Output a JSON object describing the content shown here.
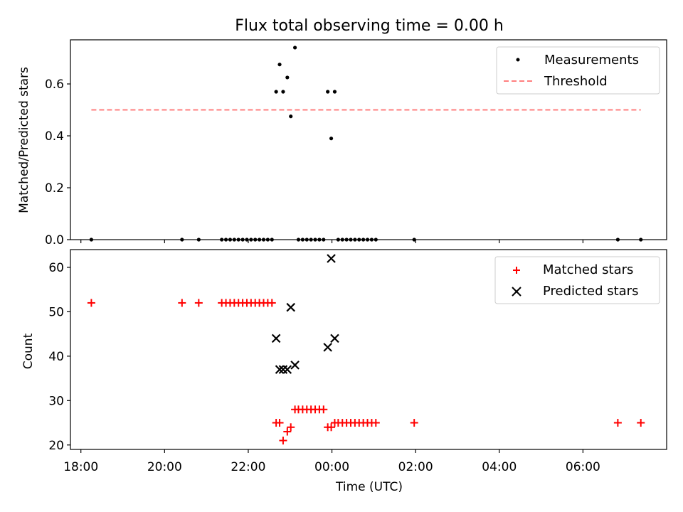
{
  "title": "Flux total observing time = 0.00 h",
  "chart_data": [
    {
      "type": "scatter",
      "ylabel": "Matched/Predicted stars",
      "ylim": [
        0,
        0.77
      ],
      "yticks": [
        0.0,
        0.2,
        0.4,
        0.6
      ],
      "ytick_labels": [
        "0.0",
        "0.2",
        "0.4",
        "0.6"
      ],
      "legend": {
        "placement": "top-right",
        "entries": [
          "Measurements",
          "Threshold"
        ]
      },
      "colors": {
        "measurements": "#000000",
        "threshold": "#ff7f7f"
      },
      "series": [
        {
          "name": "Measurements",
          "points": [
            [
              "18:15",
              0.0
            ],
            [
              "20:25",
              0.0
            ],
            [
              "20:49",
              0.0
            ],
            [
              "21:22",
              0.0
            ],
            [
              "21:28",
              0.0
            ],
            [
              "21:34",
              0.0
            ],
            [
              "21:40",
              0.0
            ],
            [
              "21:46",
              0.0
            ],
            [
              "21:52",
              0.0
            ],
            [
              "21:58",
              0.0
            ],
            [
              "22:04",
              0.0
            ],
            [
              "22:10",
              0.0
            ],
            [
              "22:16",
              0.0
            ],
            [
              "22:22",
              0.0
            ],
            [
              "22:28",
              0.0
            ],
            [
              "22:34",
              0.0
            ],
            [
              "22:40",
              0.57
            ],
            [
              "22:45",
              0.675
            ],
            [
              "22:50",
              0.57
            ],
            [
              "22:56",
              0.625
            ],
            [
              "23:01",
              0.475
            ],
            [
              "23:07",
              0.74
            ],
            [
              "23:12",
              0.0
            ],
            [
              "23:18",
              0.0
            ],
            [
              "23:24",
              0.0
            ],
            [
              "23:30",
              0.0
            ],
            [
              "23:36",
              0.0
            ],
            [
              "23:42",
              0.0
            ],
            [
              "23:48",
              0.0
            ],
            [
              "23:54",
              0.57
            ],
            [
              "23:59",
              0.39
            ],
            [
              "00:04",
              0.57
            ],
            [
              "00:09",
              0.0
            ],
            [
              "00:15",
              0.0
            ],
            [
              "00:21",
              0.0
            ],
            [
              "00:27",
              0.0
            ],
            [
              "00:33",
              0.0
            ],
            [
              "00:39",
              0.0
            ],
            [
              "00:45",
              0.0
            ],
            [
              "00:51",
              0.0
            ],
            [
              "00:57",
              0.0
            ],
            [
              "01:03",
              0.0
            ],
            [
              "01:58",
              0.0
            ],
            [
              "06:50",
              0.0
            ],
            [
              "07:23",
              0.0
            ]
          ]
        },
        {
          "name": "Threshold",
          "x": [
            "18:15",
            "07:23"
          ],
          "y": [
            0.5,
            0.5
          ]
        }
      ]
    },
    {
      "type": "scatter",
      "xlabel": "Time (UTC)",
      "ylabel": "Count",
      "ylim": [
        19,
        64
      ],
      "yticks": [
        20,
        30,
        40,
        50,
        60
      ],
      "ytick_labels": [
        "20",
        "30",
        "40",
        "50",
        "60"
      ],
      "xlim": [
        "17:45",
        "08:00"
      ],
      "xticks": [
        "18:00",
        "20:00",
        "22:00",
        "00:00",
        "02:00",
        "04:00",
        "06:00"
      ],
      "xtick_labels": [
        "18:00",
        "20:00",
        "22:00",
        "00:00",
        "02:00",
        "04:00",
        "06:00"
      ],
      "legend": {
        "placement": "top-right",
        "entries": [
          "Matched stars",
          "Predicted stars"
        ]
      },
      "colors": {
        "matched": "#ff0000",
        "predicted": "#000000"
      },
      "series": [
        {
          "name": "Matched stars",
          "points": [
            [
              "18:15",
              52
            ],
            [
              "20:25",
              52
            ],
            [
              "20:49",
              52
            ],
            [
              "21:22",
              52
            ],
            [
              "21:28",
              52
            ],
            [
              "21:34",
              52
            ],
            [
              "21:40",
              52
            ],
            [
              "21:46",
              52
            ],
            [
              "21:52",
              52
            ],
            [
              "21:58",
              52
            ],
            [
              "22:04",
              52
            ],
            [
              "22:10",
              52
            ],
            [
              "22:16",
              52
            ],
            [
              "22:22",
              52
            ],
            [
              "22:28",
              52
            ],
            [
              "22:34",
              52
            ],
            [
              "22:40",
              25
            ],
            [
              "22:45",
              25
            ],
            [
              "22:50",
              21
            ],
            [
              "22:56",
              23
            ],
            [
              "23:01",
              24
            ],
            [
              "23:07",
              28
            ],
            [
              "23:12",
              28
            ],
            [
              "23:18",
              28
            ],
            [
              "23:24",
              28
            ],
            [
              "23:30",
              28
            ],
            [
              "23:36",
              28
            ],
            [
              "23:42",
              28
            ],
            [
              "23:48",
              28
            ],
            [
              "23:54",
              24
            ],
            [
              "23:59",
              24
            ],
            [
              "00:04",
              25
            ],
            [
              "00:09",
              25
            ],
            [
              "00:15",
              25
            ],
            [
              "00:21",
              25
            ],
            [
              "00:27",
              25
            ],
            [
              "00:33",
              25
            ],
            [
              "00:39",
              25
            ],
            [
              "00:45",
              25
            ],
            [
              "00:51",
              25
            ],
            [
              "00:57",
              25
            ],
            [
              "01:03",
              25
            ],
            [
              "01:58",
              25
            ],
            [
              "06:50",
              25
            ],
            [
              "07:23",
              25
            ]
          ]
        },
        {
          "name": "Predicted stars",
          "points": [
            [
              "22:40",
              44
            ],
            [
              "22:45",
              37
            ],
            [
              "22:50",
              37
            ],
            [
              "22:56",
              37
            ],
            [
              "23:01",
              51
            ],
            [
              "23:07",
              38
            ],
            [
              "23:54",
              42
            ],
            [
              "23:59",
              62
            ],
            [
              "00:04",
              44
            ]
          ]
        }
      ]
    }
  ]
}
